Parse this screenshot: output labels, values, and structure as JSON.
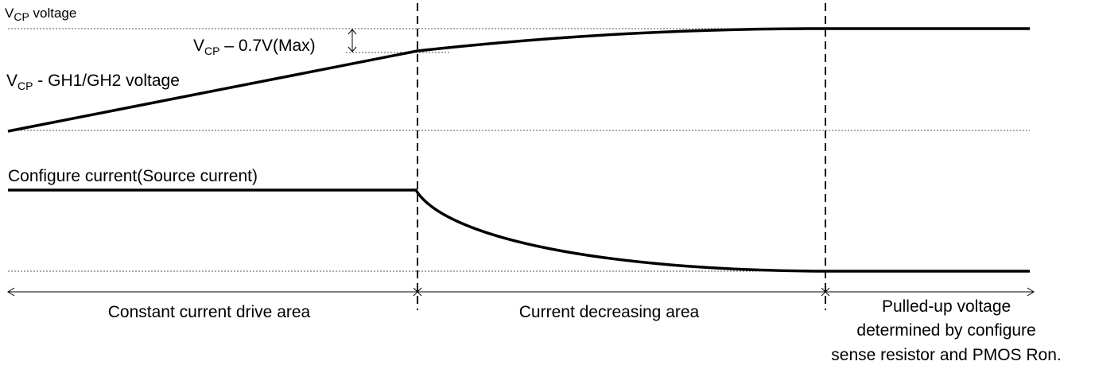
{
  "labels": {
    "vcp_voltage": {
      "main": "V",
      "sub": "CP",
      "rest": " voltage"
    },
    "vcp_gh_voltage": {
      "main": "V",
      "sub": "CP",
      "rest": " - GH1/GH2 voltage"
    },
    "vcp_minus_07": {
      "main": "V",
      "sub": "CP",
      "rest": " – 0.7V(Max)"
    },
    "configure_current": "Configure current(Source current)"
  },
  "areas": {
    "constant": "Constant current drive area",
    "decreasing": "Current decreasing area",
    "pulled_up": [
      "Pulled-up voltage",
      "determined by configure",
      "sense resistor and PMOS Ron."
    ]
  }
}
